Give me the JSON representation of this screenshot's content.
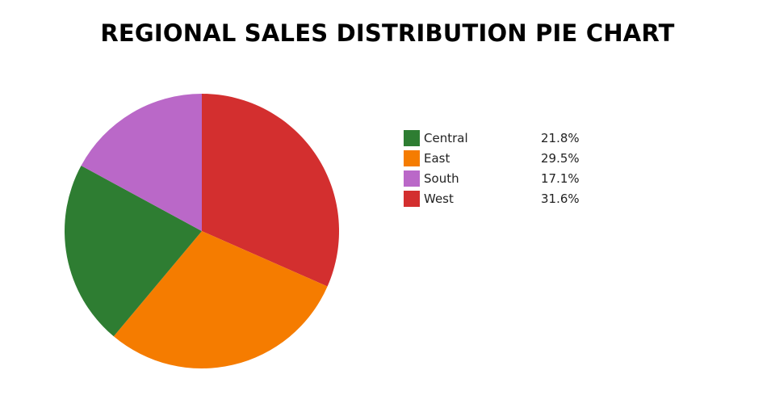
{
  "chart_data": {
    "type": "pie",
    "title": "REGIONAL SALES DISTRIBUTION PIE CHART",
    "categories": [
      "Central",
      "East",
      "South",
      "West"
    ],
    "values": [
      21.8,
      29.5,
      17.1,
      31.6
    ],
    "value_labels": [
      "21.8%",
      "29.5%",
      "17.1%",
      "31.6%"
    ],
    "colors": [
      "#2e7d32",
      "#f57c00",
      "#ba68c8",
      "#d32f2f"
    ],
    "start_angle_deg": 0,
    "direction": "clockwise",
    "slice_order": [
      "West",
      "East",
      "Central",
      "South"
    ],
    "legend_position": "right"
  }
}
